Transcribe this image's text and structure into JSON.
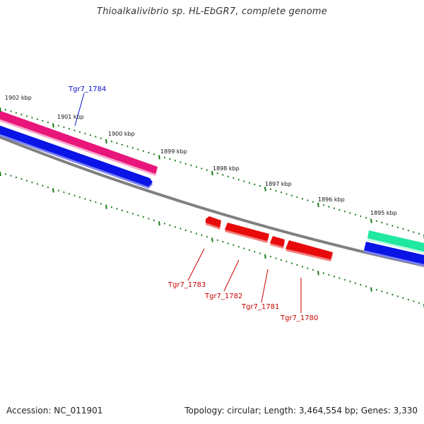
{
  "header": {
    "title": "Thioalkalivibrio sp. HL-EbGR7, complete genome"
  },
  "footer": {
    "accession": "Accession: NC_011901",
    "topology": "Topology: circular; Length: 3,464,554 bp; Genes: 3,330"
  },
  "colors": {
    "backbone": "#808080",
    "tick": "#1a7a1a",
    "pink_gene": "#e8157a",
    "blue_gene": "#0a14e6",
    "teal_gene": "#20e8a0",
    "red_gene": "#e80a0a",
    "blue_label": "#0a14c8",
    "red_label": "#cc0000"
  },
  "ruler": {
    "labels": [
      "1902 kbp",
      "1901 kbp",
      "1900 kbp",
      "1899 kbp",
      "1898 kbp",
      "1897 kbp",
      "1896 kbp",
      "1895 kbp"
    ]
  },
  "genes": {
    "top_labels": [
      "Tgr7_1784"
    ],
    "bottom_labels": [
      "Tgr7_1783",
      "Tgr7_1782",
      "Tgr7_1781",
      "Tgr7_1780"
    ]
  }
}
